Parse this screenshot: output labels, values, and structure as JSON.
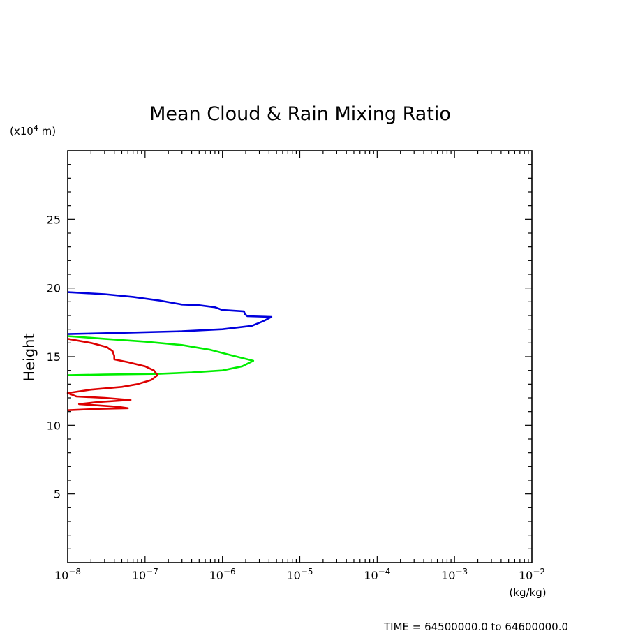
{
  "chart_data": {
    "type": "line",
    "title": "Mean Cloud & Rain Mixing Ratio",
    "ylabel": "Height",
    "y_unit_prefix": "(x10",
    "y_unit_exponent": "4",
    "y_unit_suffix": " m)",
    "x_unit": "(kg/kg)",
    "time_label": "TIME = 64500000.0 to 64600000.0",
    "x_scale": "log",
    "xlim": [
      1e-08,
      0.01
    ],
    "ylim": [
      0,
      30
    ],
    "x_ticks": [
      {
        "base": "10",
        "exp": "−8"
      },
      {
        "base": "10",
        "exp": "−7"
      },
      {
        "base": "10",
        "exp": "−6"
      },
      {
        "base": "10",
        "exp": "−5"
      },
      {
        "base": "10",
        "exp": "−4"
      },
      {
        "base": "10",
        "exp": "−3"
      },
      {
        "base": "10",
        "exp": "−2"
      }
    ],
    "y_ticks": [
      "5",
      "10",
      "15",
      "20",
      "25"
    ],
    "grid": false,
    "series": [
      {
        "color": "#0000dd",
        "points": [
          [
            1e-08,
            19.7
          ],
          [
            3e-08,
            19.55
          ],
          [
            7e-08,
            19.35
          ],
          [
            1.5e-07,
            19.1
          ],
          [
            3e-07,
            18.8
          ],
          [
            5e-07,
            18.75
          ],
          [
            8e-07,
            18.6
          ],
          [
            1e-06,
            18.4
          ],
          [
            1.9e-06,
            18.3
          ],
          [
            1.95e-06,
            18.1
          ],
          [
            2.1e-06,
            17.95
          ],
          [
            4.3e-06,
            17.9
          ],
          [
            3.4e-06,
            17.6
          ],
          [
            2.4e-06,
            17.25
          ],
          [
            1e-06,
            17.0
          ],
          [
            3e-07,
            16.85
          ],
          [
            6e-08,
            16.75
          ],
          [
            1e-08,
            16.65
          ]
        ]
      },
      {
        "color": "#00ee00",
        "points": [
          [
            1e-08,
            16.5
          ],
          [
            3e-08,
            16.3
          ],
          [
            1e-07,
            16.1
          ],
          [
            3e-07,
            15.85
          ],
          [
            7e-07,
            15.5
          ],
          [
            1.3e-06,
            15.1
          ],
          [
            2.5e-06,
            14.7
          ],
          [
            1.8e-06,
            14.3
          ],
          [
            1e-06,
            14.0
          ],
          [
            4e-07,
            13.85
          ],
          [
            1.5e-07,
            13.75
          ],
          [
            3e-08,
            13.7
          ],
          [
            1e-08,
            13.65
          ]
        ]
      },
      {
        "color": "#dd0000",
        "points": [
          [
            1e-08,
            16.3
          ],
          [
            2e-08,
            16.0
          ],
          [
            3.2e-08,
            15.7
          ],
          [
            3.8e-08,
            15.4
          ],
          [
            4e-08,
            15.05
          ],
          [
            4e-08,
            14.8
          ],
          [
            6e-08,
            14.6
          ],
          [
            1e-07,
            14.3
          ],
          [
            1.3e-07,
            14.0
          ],
          [
            1.45e-07,
            13.65
          ],
          [
            1.2e-07,
            13.3
          ],
          [
            8e-08,
            13.0
          ],
          [
            5e-08,
            12.8
          ],
          [
            2e-08,
            12.6
          ],
          [
            1e-08,
            12.35
          ],
          [
            1.3e-08,
            12.1
          ],
          [
            3e-08,
            12.0
          ],
          [
            6.5e-08,
            11.85
          ],
          [
            2.5e-08,
            11.7
          ],
          [
            1.4e-08,
            11.55
          ],
          [
            2.5e-08,
            11.45
          ],
          [
            4.5e-08,
            11.35
          ],
          [
            6e-08,
            11.25
          ],
          [
            2.5e-08,
            11.2
          ],
          [
            1e-08,
            11.1
          ]
        ]
      }
    ]
  }
}
